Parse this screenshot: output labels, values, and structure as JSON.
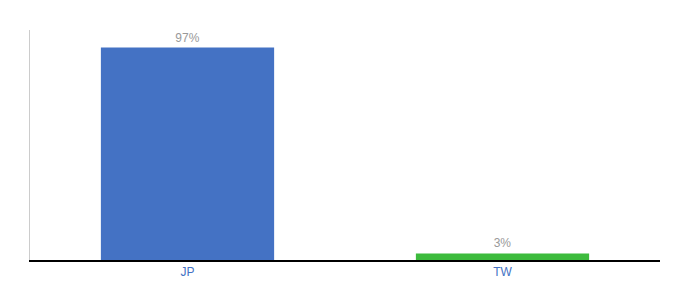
{
  "chart_data": {
    "type": "bar",
    "categories": [
      "JP",
      "TW"
    ],
    "values": [
      97,
      3
    ],
    "colors": [
      "#4472c4",
      "#3dbb3d"
    ],
    "data_labels": true,
    "value_labels": [
      "97%",
      "3%"
    ],
    "ylim": [
      0,
      105
    ],
    "yticks": [],
    "grid": false,
    "tick_labels": "x"
  }
}
